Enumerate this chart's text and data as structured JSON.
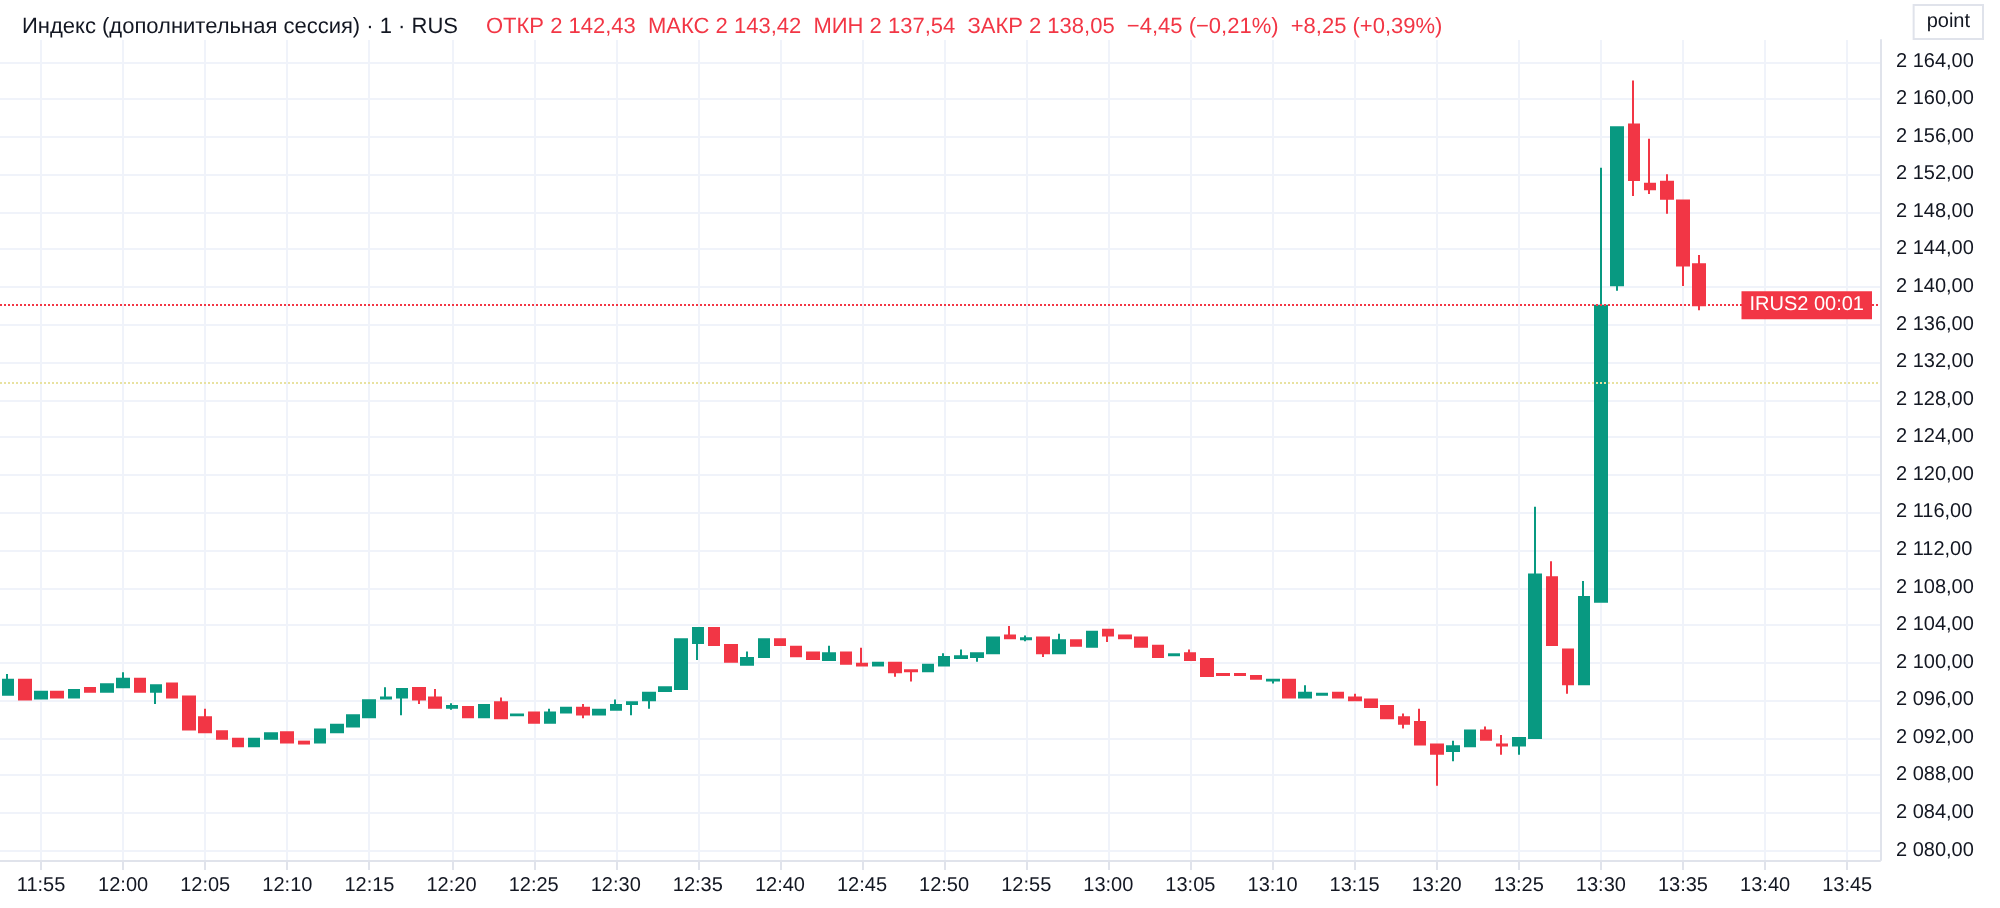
{
  "chart_data": {
    "type": "candlestick",
    "title": "Индекс (дополнительная сессия) · 1 · RUS",
    "subtitle": "ОТКР 2 142,43  МАКС 2 143,42  МИН 2 137,54  ЗАКР 2 138,05  −4,45 (−0,21%)  +8,25 (+0,39%)",
    "annotations": [
      "point",
      {
        "text": "IRUS2 00:01",
        "y": 2138.05
      }
    ],
    "x": [
      11.8833,
      11.9,
      11.9167,
      11.9333,
      11.95,
      11.9667,
      11.9833,
      12,
      12.0167,
      12.0333,
      12.05,
      12.0667,
      12.0833,
      12.1,
      12.1167,
      12.1333,
      12.15,
      12.1667,
      12.1833,
      12.2,
      12.2167,
      12.2333,
      12.25,
      12.2667,
      12.2833,
      12.3,
      12.3167,
      12.3333,
      12.35,
      12.3667,
      12.3833,
      12.4,
      12.4167,
      12.4333,
      12.45,
      12.4667,
      12.4833,
      12.5,
      12.5167,
      12.5333,
      12.55,
      12.5667,
      12.5833,
      12.6,
      12.6167,
      12.6333,
      12.65,
      12.6667,
      12.6833,
      12.7,
      12.7167,
      12.7333,
      12.75,
      12.7667,
      12.7833,
      12.8,
      12.8167,
      12.8333,
      12.85,
      12.8667,
      12.8833,
      12.9,
      12.9167,
      12.9333,
      12.95,
      12.9667,
      12.9833,
      13,
      13.0167,
      13.0333,
      13.05,
      13.0667,
      13.0833,
      13.1,
      13.1167,
      13.1333,
      13.15,
      13.1667,
      13.1833,
      13.2,
      13.2167,
      13.2333,
      13.25,
      13.2667,
      13.2833,
      13.3,
      13.3167,
      13.3333,
      13.35,
      13.3667,
      13.3833,
      13.4,
      13.4167,
      13.4333,
      13.45,
      13.4667,
      13.4833,
      13.5,
      13.5167,
      13.5333,
      13.55,
      13.5667,
      13.5833,
      13.6
    ],
    "ohlc": [
      [
        2096.6,
        2098.8,
        2096.6,
        2098.2
      ],
      [
        2098.2,
        2098.2,
        2096.1,
        2096.1
      ],
      [
        2096.2,
        2096.9,
        2096.2,
        2096.9
      ],
      [
        2096.9,
        2096.9,
        2096.3,
        2096.3
      ],
      [
        2096.3,
        2097.1,
        2096.3,
        2097.1
      ],
      [
        2097.3,
        2097.3,
        2096.9,
        2096.9
      ],
      [
        2096.9,
        2097.7,
        2096.9,
        2097.7
      ],
      [
        2097.4,
        2099.0,
        2097.4,
        2098.3
      ],
      [
        2098.3,
        2098.3,
        2096.9,
        2096.9
      ],
      [
        2096.9,
        2097.6,
        2095.6,
        2097.6
      ],
      [
        2097.8,
        2097.8,
        2096.3,
        2096.3
      ],
      [
        2096.4,
        2096.4,
        2092.9,
        2092.9
      ],
      [
        2094.2,
        2095.1,
        2092.6,
        2092.6
      ],
      [
        2092.7,
        2092.7,
        2091.9,
        2091.9
      ],
      [
        2091.9,
        2091.9,
        2091.1,
        2091.1
      ],
      [
        2091.1,
        2091.9,
        2091.1,
        2091.9
      ],
      [
        2091.9,
        2092.5,
        2091.9,
        2092.5
      ],
      [
        2092.6,
        2092.6,
        2091.5,
        2091.5
      ],
      [
        2091.6,
        2091.6,
        2091.4,
        2091.4
      ],
      [
        2091.5,
        2092.9,
        2091.5,
        2092.9
      ],
      [
        2092.6,
        2093.4,
        2092.6,
        2093.4
      ],
      [
        2093.2,
        2094.4,
        2093.2,
        2094.4
      ],
      [
        2094.2,
        2096.0,
        2094.2,
        2096.0
      ],
      [
        2096.2,
        2097.4,
        2096.2,
        2096.3
      ],
      [
        2096.3,
        2097.2,
        2094.4,
        2097.2
      ],
      [
        2097.3,
        2097.3,
        2095.6,
        2096.1
      ],
      [
        2096.3,
        2097.2,
        2095.2,
        2095.2
      ],
      [
        2095.2,
        2095.7,
        2095.0,
        2095.4
      ],
      [
        2095.3,
        2095.3,
        2094.2,
        2094.2
      ],
      [
        2094.2,
        2095.5,
        2094.2,
        2095.5
      ],
      [
        2095.8,
        2096.3,
        2094.1,
        2094.1
      ],
      [
        2094.4,
        2094.6,
        2094.4,
        2094.5
      ],
      [
        2094.7,
        2094.7,
        2093.6,
        2093.6
      ],
      [
        2093.6,
        2095.1,
        2093.6,
        2094.7
      ],
      [
        2094.7,
        2095.2,
        2094.7,
        2095.2
      ],
      [
        2095.2,
        2095.6,
        2094.1,
        2094.5
      ],
      [
        2094.5,
        2095.0,
        2094.5,
        2095.0
      ],
      [
        2095.0,
        2096.1,
        2095.0,
        2095.5
      ],
      [
        2095.6,
        2095.8,
        2094.4,
        2095.8
      ],
      [
        2096.0,
        2096.8,
        2095.1,
        2096.8
      ],
      [
        2097.0,
        2097.4,
        2097.0,
        2097.4
      ],
      [
        2097.2,
        2102.5,
        2097.2,
        2102.5
      ],
      [
        2102.1,
        2103.7,
        2100.3,
        2103.7
      ],
      [
        2103.7,
        2103.7,
        2101.9,
        2101.9
      ],
      [
        2101.9,
        2101.9,
        2100.1,
        2100.1
      ],
      [
        2099.8,
        2101.2,
        2099.8,
        2100.5
      ],
      [
        2100.6,
        2102.5,
        2100.6,
        2102.5
      ],
      [
        2102.5,
        2102.5,
        2101.9,
        2101.9
      ],
      [
        2101.7,
        2101.7,
        2100.7,
        2100.7
      ],
      [
        2101.1,
        2101.1,
        2100.4,
        2100.4
      ],
      [
        2100.3,
        2101.8,
        2100.3,
        2101.0
      ],
      [
        2101.1,
        2101.1,
        2099.9,
        2099.9
      ],
      [
        2099.9,
        2101.6,
        2099.7,
        2099.7
      ],
      [
        2099.7,
        2100.0,
        2099.7,
        2100.0
      ],
      [
        2100.0,
        2100.0,
        2098.5,
        2099.0
      ],
      [
        2099.2,
        2099.2,
        2098.0,
        2099.1
      ],
      [
        2099.1,
        2099.8,
        2099.1,
        2099.8
      ],
      [
        2099.7,
        2101.0,
        2099.7,
        2100.6
      ],
      [
        2100.5,
        2101.4,
        2100.5,
        2100.7
      ],
      [
        2100.6,
        2101.0,
        2100.1,
        2101.0
      ],
      [
        2101.0,
        2102.7,
        2101.0,
        2102.7
      ],
      [
        2102.9,
        2103.9,
        2102.6,
        2102.6
      ],
      [
        2102.5,
        2102.9,
        2102.3,
        2102.6
      ],
      [
        2102.7,
        2102.7,
        2100.6,
        2101.0
      ],
      [
        2101.0,
        2103.1,
        2101.0,
        2102.4
      ],
      [
        2102.4,
        2102.4,
        2101.8,
        2101.8
      ],
      [
        2101.7,
        2103.3,
        2101.7,
        2103.3
      ],
      [
        2103.5,
        2103.5,
        2102.2,
        2102.9
      ],
      [
        2102.9,
        2102.9,
        2102.6,
        2102.6
      ],
      [
        2102.7,
        2102.7,
        2101.7,
        2101.7
      ],
      [
        2101.8,
        2101.8,
        2100.6,
        2100.6
      ],
      [
        2100.8,
        2100.9,
        2100.8,
        2100.9
      ],
      [
        2101.0,
        2101.4,
        2100.3,
        2100.3
      ],
      [
        2100.4,
        2100.4,
        2098.6,
        2098.6
      ],
      [
        2098.8,
        2098.8,
        2098.6,
        2098.7
      ],
      [
        2098.8,
        2098.8,
        2098.6,
        2098.7
      ],
      [
        2098.6,
        2098.6,
        2098.3,
        2098.3
      ],
      [
        2098.1,
        2098.3,
        2097.8,
        2098.2
      ],
      [
        2098.2,
        2098.2,
        2096.3,
        2096.3
      ],
      [
        2096.3,
        2097.6,
        2096.3,
        2096.8
      ],
      [
        2096.6,
        2096.8,
        2096.6,
        2096.7
      ],
      [
        2096.8,
        2096.8,
        2096.3,
        2096.3
      ],
      [
        2096.3,
        2096.7,
        2096.0,
        2096.0
      ],
      [
        2096.1,
        2096.1,
        2095.3,
        2095.3
      ],
      [
        2095.4,
        2095.4,
        2094.1,
        2094.1
      ],
      [
        2094.2,
        2094.6,
        2093.0,
        2093.5
      ],
      [
        2093.7,
        2095.1,
        2091.3,
        2091.3
      ],
      [
        2091.3,
        2091.3,
        2086.9,
        2090.3
      ],
      [
        2090.6,
        2091.7,
        2089.5,
        2091.1
      ],
      [
        2091.1,
        2092.8,
        2091.1,
        2092.8
      ],
      [
        2092.8,
        2093.2,
        2091.8,
        2091.8
      ],
      [
        2091.3,
        2092.3,
        2090.2,
        2091.2
      ],
      [
        2091.2,
        2092.0,
        2090.2,
        2092.0
      ],
      [
        2092.0,
        2116.6,
        2092.0,
        2109.4
      ],
      [
        2109.1,
        2110.8,
        2101.9,
        2101.9
      ],
      [
        2101.4,
        2101.4,
        2096.7,
        2097.7
      ],
      [
        2097.7,
        2108.7,
        2097.7,
        2107.0
      ],
      [
        2106.5,
        2152.7,
        2106.5,
        2138.0
      ],
      [
        2140.2,
        2157.0,
        2139.6,
        2157.0
      ],
      [
        2157.3,
        2162.0,
        2149.7,
        2151.4
      ],
      [
        2151.0,
        2155.8,
        2149.9,
        2150.4
      ],
      [
        2151.2,
        2152.0,
        2147.8,
        2149.4
      ],
      [
        2149.2,
        2149.2,
        2140.1,
        2142.3
      ],
      [
        2142.43,
        2143.42,
        2137.54,
        2138.05
      ]
    ],
    "colors": [
      "#089981",
      "#f23645",
      "#089981",
      "#f23645",
      "#089981",
      "#f23645",
      "#089981",
      "#089981",
      "#f23645",
      "#089981",
      "#f23645",
      "#f23645",
      "#f23645",
      "#f23645",
      "#f23645",
      "#089981",
      "#089981",
      "#f23645",
      "#f23645",
      "#089981",
      "#089981",
      "#089981",
      "#089981",
      "#089981",
      "#089981",
      "#f23645",
      "#f23645",
      "#089981",
      "#f23645",
      "#089981",
      "#f23645",
      "#089981",
      "#f23645",
      "#089981",
      "#089981",
      "#f23645",
      "#089981",
      "#089981",
      "#089981",
      "#089981",
      "#089981",
      "#089981",
      "#089981",
      "#f23645",
      "#f23645",
      "#089981",
      "#089981",
      "#f23645",
      "#f23645",
      "#f23645",
      "#089981",
      "#f23645",
      "#f23645",
      "#089981",
      "#f23645",
      "#f23645",
      "#089981",
      "#089981",
      "#089981",
      "#089981",
      "#089981",
      "#f23645",
      "#089981",
      "#f23645",
      "#089981",
      "#f23645",
      "#089981",
      "#f23645",
      "#f23645",
      "#f23645",
      "#f23645",
      "#089981",
      "#f23645",
      "#f23645",
      "#f23645",
      "#f23645",
      "#f23645",
      "#089981",
      "#f23645",
      "#089981",
      "#089981",
      "#f23645",
      "#f23645",
      "#f23645",
      "#f23645",
      "#f23645",
      "#f23645",
      "#f23645",
      "#089981",
      "#089981",
      "#f23645",
      "#f23645",
      "#089981",
      "#089981",
      "#f23645",
      "#f23645",
      "#089981",
      "#089981",
      "#089981",
      "#f23645",
      "#f23645",
      "#f23645",
      "#f23645",
      "#f23645"
    ],
    "xlim": [
      11.875,
      13.7833
    ],
    "xticks": [
      {
        "value": 11.9167,
        "label": "11:55"
      },
      {
        "value": 12,
        "label": "12:00"
      },
      {
        "value": 12.0833,
        "label": "12:05"
      },
      {
        "value": 12.1667,
        "label": "12:10"
      },
      {
        "value": 12.25,
        "label": "12:15"
      },
      {
        "value": 12.3333,
        "label": "12:20"
      },
      {
        "value": 12.4167,
        "label": "12:25"
      },
      {
        "value": 12.5,
        "label": "12:30"
      },
      {
        "value": 12.5833,
        "label": "12:35"
      },
      {
        "value": 12.6667,
        "label": "12:40"
      },
      {
        "value": 12.75,
        "label": "12:45"
      },
      {
        "value": 12.8333,
        "label": "12:50"
      },
      {
        "value": 12.9167,
        "label": "12:55"
      },
      {
        "value": 13,
        "label": "13:00"
      },
      {
        "value": 13.0833,
        "label": "13:05"
      },
      {
        "value": 13.1667,
        "label": "13:10"
      },
      {
        "value": 13.25,
        "label": "13:15"
      },
      {
        "value": 13.3333,
        "label": "13:20"
      },
      {
        "value": 13.4167,
        "label": "13:25"
      },
      {
        "value": 13.5,
        "label": "13:30"
      },
      {
        "value": 13.5833,
        "label": "13:35"
      },
      {
        "value": 13.6667,
        "label": "13:40"
      },
      {
        "value": 13.75,
        "label": "13:45"
      }
    ],
    "ylim": [
      2079,
      2166.3
    ],
    "yticks": [
      {
        "value": 2080,
        "label": "2 080,00"
      },
      {
        "value": 2084,
        "label": "2 084,00"
      },
      {
        "value": 2088,
        "label": "2 088,00"
      },
      {
        "value": 2092,
        "label": "2 092,00"
      },
      {
        "value": 2096,
        "label": "2 096,00"
      },
      {
        "value": 2100,
        "label": "2 100,00"
      },
      {
        "value": 2104,
        "label": "2 104,00"
      },
      {
        "value": 2108,
        "label": "2 108,00"
      },
      {
        "value": 2112,
        "label": "2 112,00"
      },
      {
        "value": 2116,
        "label": "2 116,00"
      },
      {
        "value": 2120,
        "label": "2 120,00"
      },
      {
        "value": 2124,
        "label": "2 124,00"
      },
      {
        "value": 2128,
        "label": "2 128,00"
      },
      {
        "value": 2132,
        "label": "2 132,00"
      },
      {
        "value": 2136,
        "label": "2 136,00"
      },
      {
        "value": 2140,
        "label": "2 140,00"
      },
      {
        "value": 2144,
        "label": "2 144,00"
      },
      {
        "value": 2148,
        "label": "2 148,00"
      },
      {
        "value": 2152,
        "label": "2 152,00"
      },
      {
        "value": 2156,
        "label": "2 156,00"
      },
      {
        "value": 2160,
        "label": "2 160,00"
      },
      {
        "value": 2164,
        "label": "2 164,00"
      }
    ],
    "ref_lines": [
      {
        "axis": "y",
        "value": 2138.05,
        "color": "#f23645",
        "line_style": "dotted"
      },
      {
        "axis": "y",
        "value": 2129.8,
        "color": "#e8e2a0",
        "line_style": "dotted"
      }
    ],
    "grid": true
  }
}
